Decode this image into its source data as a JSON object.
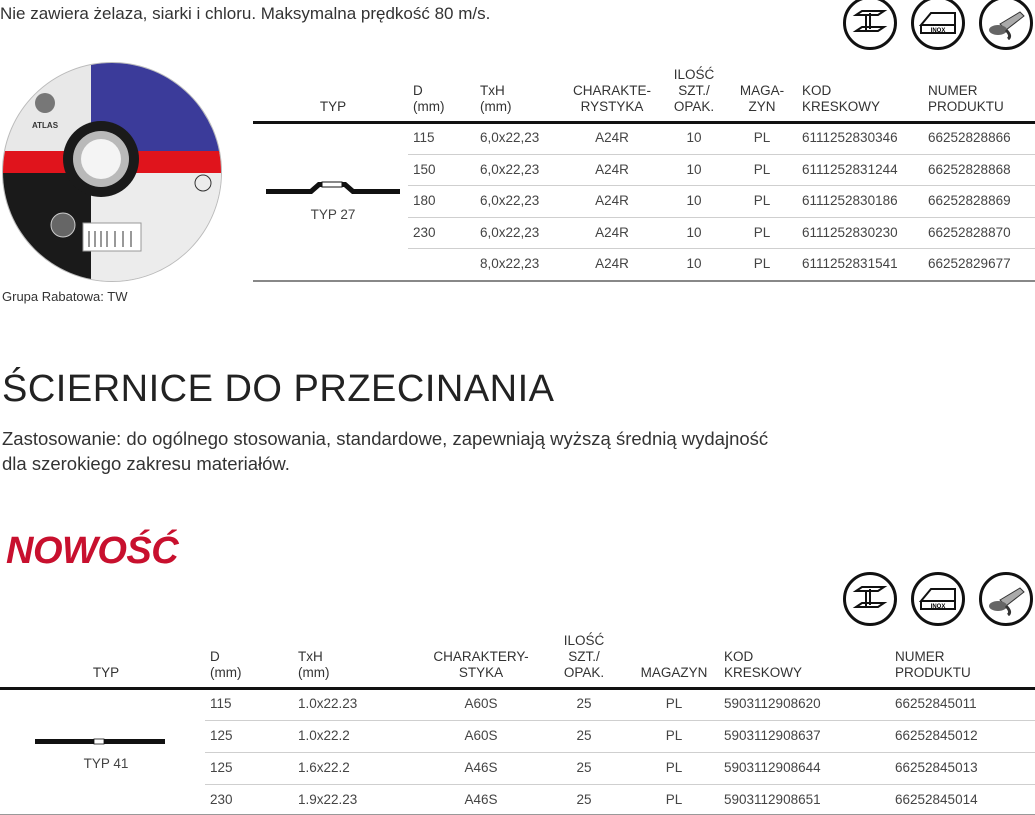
{
  "intro": "Nie zawiera żelaza, siarki i chloru. Maksymalna prędkość 80 m/s.",
  "material_icons": [
    "steel-beam-icon",
    "inox-icon",
    "angle-grinder-icon"
  ],
  "inox_label": "INOX",
  "disc_brand": "ATLAS",
  "table1": {
    "headers": {
      "typ": "TYP",
      "d": [
        "D",
        "(mm)"
      ],
      "txh": [
        "TxH",
        "(mm)"
      ],
      "char": [
        "CHARAKTE-",
        "RYSTYKA"
      ],
      "qty": [
        "ILOŚĆ",
        "SZT./",
        "OPAK."
      ],
      "mag": [
        "MAGA-",
        "ZYN"
      ],
      "kod": [
        "KOD",
        "KRESKOWY"
      ],
      "num": [
        "NUMER",
        "PRODUKTU"
      ]
    },
    "type_label": "TYP 27",
    "rows": [
      {
        "d": "115",
        "txh": "6,0x22,23",
        "char": "A24R",
        "qty": "10",
        "mag": "PL",
        "kod": "6111252830346",
        "num": "66252828866"
      },
      {
        "d": "150",
        "txh": "6,0x22,23",
        "char": "A24R",
        "qty": "10",
        "mag": "PL",
        "kod": "6111252831244",
        "num": "66252828868"
      },
      {
        "d": "180",
        "txh": "6,0x22,23",
        "char": "A24R",
        "qty": "10",
        "mag": "PL",
        "kod": "6111252830186",
        "num": "66252828869"
      },
      {
        "d": "230",
        "txh": "6,0x22,23",
        "char": "A24R",
        "qty": "10",
        "mag": "PL",
        "kod": "6111252830230",
        "num": "66252828870"
      },
      {
        "d": "",
        "txh": "8,0x22,23",
        "char": "A24R",
        "qty": "10",
        "mag": "PL",
        "kod": "6111252831541",
        "num": "66252829677"
      }
    ]
  },
  "grupa": {
    "label": "Grupa Rabatowa:",
    "value": "TW"
  },
  "section_title": "ŚCIERNICE DO PRZECINANIA",
  "description": [
    "Zastosowanie: do ogólnego stosowania, standardowe, zapewniają wyższą średnią wydajność",
    "dla szerokiego zakresu materiałów."
  ],
  "badge": "NOWOŚĆ",
  "badge_color": "#c8102e",
  "table2": {
    "headers": {
      "typ": "TYP",
      "d": [
        "D",
        "(mm)"
      ],
      "txh": [
        "TxH",
        "(mm)"
      ],
      "char": [
        "CHARAKTERY-",
        "STYKA"
      ],
      "qty": [
        "ILOŚĆ",
        "SZT./",
        "OPAK."
      ],
      "mag": [
        "MAGAZYN"
      ],
      "kod": [
        "KOD",
        "KRESKOWY"
      ],
      "num": [
        "NUMER",
        "PRODUKTU"
      ]
    },
    "type_label": "TYP 41",
    "rows": [
      {
        "d": "115",
        "txh": "1.0x22.23",
        "char": "A60S",
        "qty": "25",
        "mag": "PL",
        "kod": "5903112908620",
        "num": "66252845011"
      },
      {
        "d": "125",
        "txh": "1.0x22.2",
        "char": "A60S",
        "qty": "25",
        "mag": "PL",
        "kod": "5903112908637",
        "num": "66252845012"
      },
      {
        "d": "125",
        "txh": "1.6x22.2",
        "char": "A46S",
        "qty": "25",
        "mag": "PL",
        "kod": "5903112908644",
        "num": "66252845013"
      },
      {
        "d": "230",
        "txh": "1.9x22.23",
        "char": "A46S",
        "qty": "25",
        "mag": "PL",
        "kod": "5903112908651",
        "num": "66252845014"
      }
    ]
  }
}
